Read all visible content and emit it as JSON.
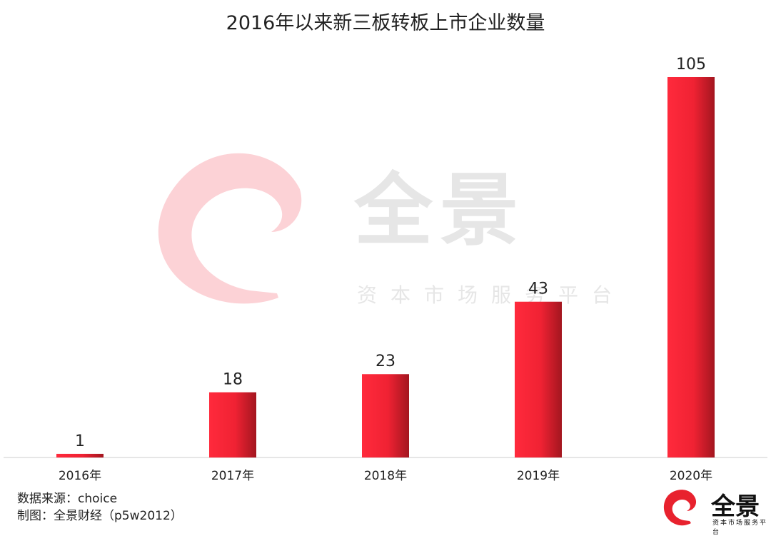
{
  "title": "2016年以来新三板转板上市企业数量",
  "source_lines": [
    "数据来源：choice",
    "制图：全景财经（p5w2012）"
  ],
  "watermark": {
    "text": "全景",
    "subtitle": "资本市场服务平台"
  },
  "logo": {
    "text": "全景",
    "subtitle": "资本市场服务平台"
  },
  "colors": {
    "bar_light": "#ff2a3c",
    "bar_dark": "#a3161f",
    "axis": "#cccccc",
    "watermark_red": "#fcd2d6"
  },
  "chart_data": {
    "type": "bar",
    "title": "2016年以来新三板转板上市企业数量",
    "categories": [
      "2016年",
      "2017年",
      "2018年",
      "2019年",
      "2020年"
    ],
    "values": [
      1,
      18,
      23,
      43,
      105
    ],
    "ylim": [
      0,
      105
    ],
    "grid": false,
    "legend": "none"
  }
}
